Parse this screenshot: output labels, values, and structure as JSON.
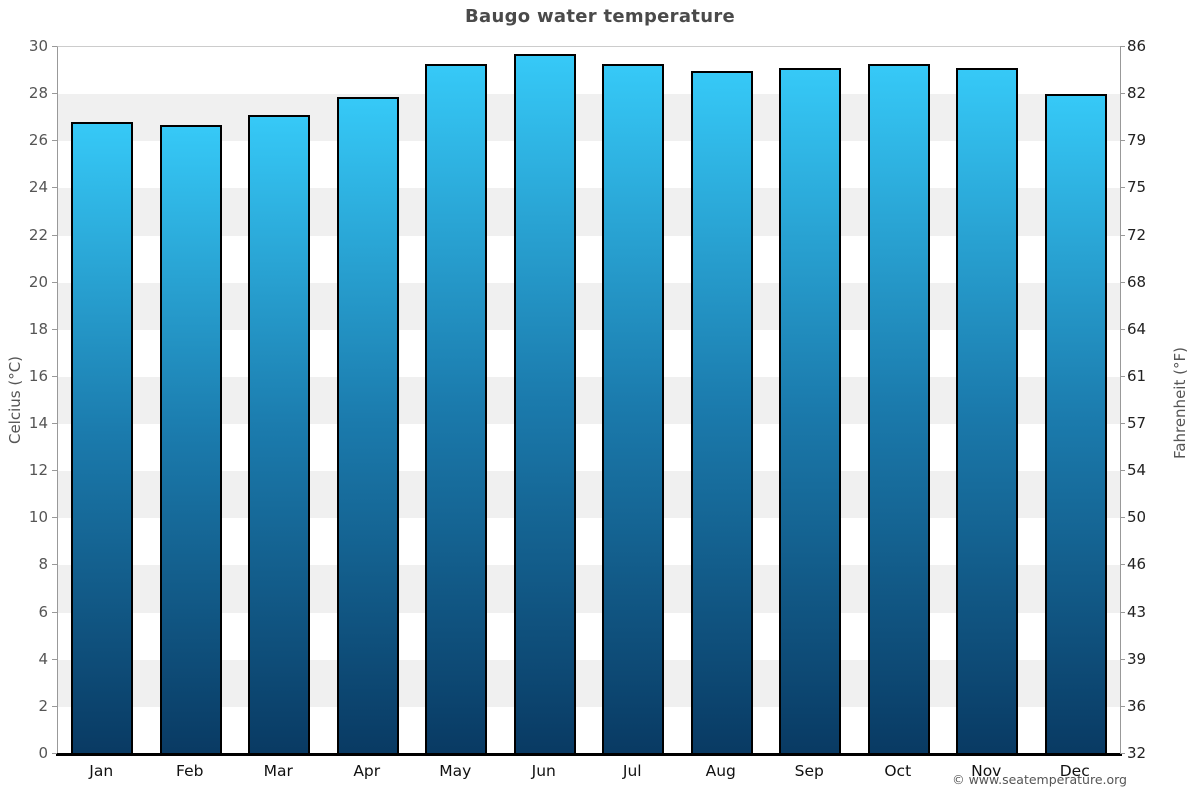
{
  "title": "Baugo water temperature",
  "footer": {
    "copyright": "© www.seatemperature.org"
  },
  "chart_data": {
    "type": "bar",
    "title": "Baugo water temperature",
    "categories": [
      "Jan",
      "Feb",
      "Mar",
      "Apr",
      "May",
      "Jun",
      "Jul",
      "Aug",
      "Sep",
      "Oct",
      "Nov",
      "Dec"
    ],
    "values": [
      26.8,
      26.7,
      27.1,
      27.9,
      29.3,
      29.7,
      29.3,
      29.0,
      29.1,
      29.3,
      29.1,
      28.0
    ],
    "unit": "°C",
    "ylabel_left": "Celcius (°C)",
    "ylabel_right": "Fahrenheit (°F)",
    "ylim": [
      0,
      30
    ],
    "ytick_step": 2,
    "yticks_celsius": [
      30,
      28,
      26,
      24,
      22,
      20,
      18,
      16,
      14,
      12,
      10,
      8,
      6,
      4,
      2,
      0
    ],
    "yticks_fahrenheit": [
      "86",
      "82",
      "79",
      "75",
      "72",
      "68",
      "64",
      "61",
      "57",
      "54",
      "50",
      "46",
      "43",
      "39",
      "36",
      "32"
    ],
    "grid": "alternating-horizontal-bands",
    "legend": "none",
    "colors": {
      "bar_gradient_top": "#36c9f7",
      "bar_gradient_mid": "#1b7bad",
      "bar_gradient_bottom": "#093a63",
      "bar_border": "#000000",
      "band_light": "#ffffff",
      "band_dark": "#f0f0f0",
      "axis_line": "#999999",
      "baseline": "#000000",
      "title_color": "#4a4a4a"
    }
  }
}
